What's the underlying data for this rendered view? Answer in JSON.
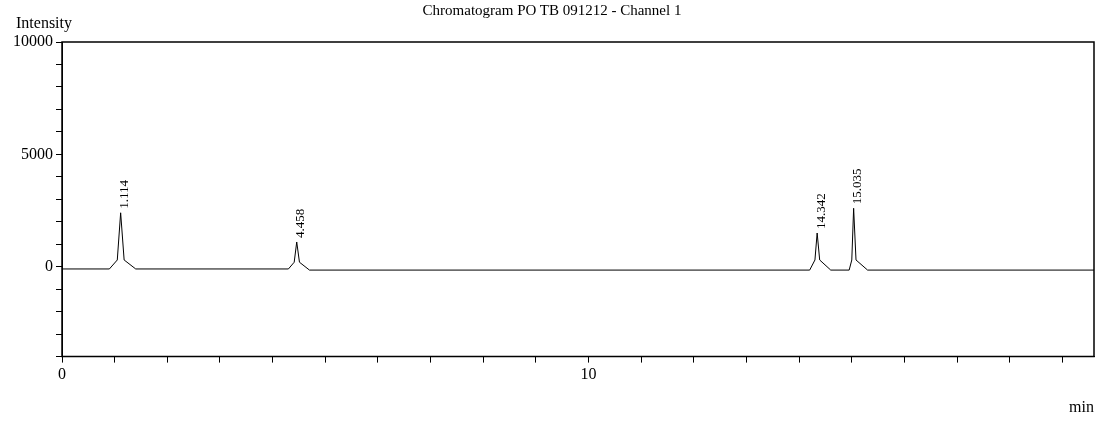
{
  "chart_data": {
    "type": "line",
    "title": "Chromatogram PO TB 091212 - Channel 1",
    "xlabel": "min",
    "ylabel": "Intensity",
    "x": [
      0,
      0.9,
      1.05,
      1.114,
      1.18,
      1.4,
      4.3,
      4.41,
      4.458,
      4.51,
      4.7,
      14.2,
      14.3,
      14.342,
      14.39,
      14.6,
      14.95,
      15.0,
      15.035,
      15.08,
      15.3,
      19.6
    ],
    "series": [
      {
        "color": "#000000",
        "values": [
          -100,
          -100,
          300,
          2400,
          300,
          -100,
          -100,
          200,
          1100,
          200,
          -150,
          -150,
          300,
          1500,
          300,
          -150,
          -150,
          300,
          2600,
          300,
          -150,
          -150
        ]
      }
    ],
    "xlim": [
      0,
      19.6
    ],
    "xticks": [
      0,
      {
        "value": 1,
        "label": null
      },
      {
        "value": 2,
        "label": null
      },
      {
        "value": 3,
        "label": null
      },
      {
        "value": 4,
        "label": null
      },
      {
        "value": 5,
        "label": null
      },
      {
        "value": 6,
        "label": null
      },
      {
        "value": 7,
        "label": null
      },
      {
        "value": 8,
        "label": null
      },
      {
        "value": 9,
        "label": null
      },
      10,
      {
        "value": 11,
        "label": null
      },
      {
        "value": 12,
        "label": null
      },
      {
        "value": 13,
        "label": null
      },
      {
        "value": 14,
        "label": null
      },
      {
        "value": 15,
        "label": null
      },
      {
        "value": 16,
        "label": null
      },
      {
        "value": 17,
        "label": null
      },
      {
        "value": 18,
        "label": null
      },
      {
        "value": 19,
        "label": null
      }
    ],
    "ylim": [
      -4000,
      10000
    ],
    "yticks": [
      {
        "value": -4000,
        "label": null
      },
      {
        "value": -3000,
        "label": null
      },
      {
        "value": -2000,
        "label": null
      },
      {
        "value": -1000,
        "label": null
      },
      0,
      {
        "value": 1000,
        "label": null
      },
      {
        "value": 2000,
        "label": null
      },
      {
        "value": 3000,
        "label": null
      },
      {
        "value": 4000,
        "label": null
      },
      5000,
      {
        "value": 6000,
        "label": null
      },
      {
        "value": 7000,
        "label": null
      },
      {
        "value": 8000,
        "label": null
      },
      {
        "value": 9000,
        "label": null
      },
      10000
    ],
    "annotations": [
      {
        "text": "1.114",
        "x": 1.114,
        "y": 2400
      },
      {
        "text": "4.458",
        "x": 4.458,
        "y": 1100
      },
      {
        "text": "14.342",
        "x": 14.342,
        "y": 1500
      },
      {
        "text": "15.035",
        "x": 15.035,
        "y": 2600
      }
    ],
    "grid": false,
    "legend": false,
    "marker": "none",
    "line_style": "solid"
  }
}
